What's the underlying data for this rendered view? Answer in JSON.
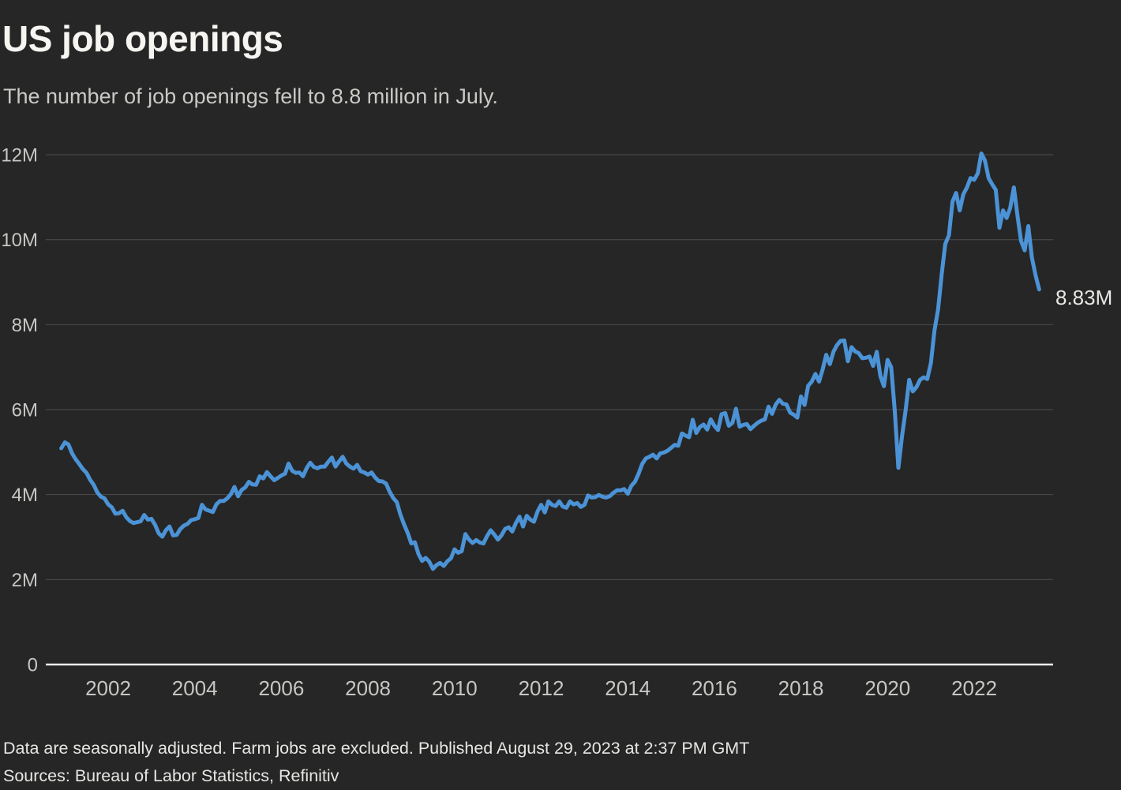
{
  "header": {
    "title": "US job openings",
    "subtitle": "The number of job openings fell to 8.8 million in July."
  },
  "footer": {
    "note": "Data are seasonally adjusted. Farm jobs are excluded. Published August 29, 2023 at 2:37 PM GMT",
    "sources": "Sources: Bureau of Labor Statistics, Refinitiv"
  },
  "colors": {
    "background": "#262626",
    "line": "#4b93d6",
    "grid": "#4e4e4e",
    "zero_axis": "#ededed",
    "title_text": "#f6f5f2",
    "muted_text": "#c6c6c3"
  },
  "chart_data": {
    "type": "line",
    "title": "US job openings",
    "subtitle": "The number of job openings fell to 8.8 million in July.",
    "unit": "millions of job openings",
    "frequency": "monthly",
    "start": "2000-12",
    "end": "2023-07",
    "ylim": [
      0,
      12.5
    ],
    "grid": "horizontal-only",
    "legend": "none",
    "end_label": "8.83M",
    "last_value": 8.83,
    "y_ticks": [
      {
        "label": "12M",
        "value": 12
      },
      {
        "label": "10M",
        "value": 10
      },
      {
        "label": "8M",
        "value": 8
      },
      {
        "label": "6M",
        "value": 6
      },
      {
        "label": "4M",
        "value": 4
      },
      {
        "label": "2M",
        "value": 2
      },
      {
        "label": "0",
        "value": 0
      }
    ],
    "x_ticks": [
      {
        "label": "2002",
        "value": 2002
      },
      {
        "label": "2004",
        "value": 2004
      },
      {
        "label": "2006",
        "value": 2006
      },
      {
        "label": "2008",
        "value": 2008
      },
      {
        "label": "2010",
        "value": 2010
      },
      {
        "label": "2012",
        "value": 2012
      },
      {
        "label": "2014",
        "value": 2014
      },
      {
        "label": "2016",
        "value": 2016
      },
      {
        "label": "2018",
        "value": 2018
      },
      {
        "label": "2020",
        "value": 2020
      },
      {
        "label": "2022",
        "value": 2022
      }
    ],
    "values": [
      5.09,
      5.23,
      5.18,
      4.97,
      4.83,
      4.72,
      4.6,
      4.51,
      4.35,
      4.23,
      4.05,
      3.95,
      3.91,
      3.77,
      3.7,
      3.55,
      3.56,
      3.62,
      3.47,
      3.38,
      3.33,
      3.35,
      3.37,
      3.52,
      3.41,
      3.43,
      3.29,
      3.09,
      3.01,
      3.16,
      3.25,
      3.04,
      3.05,
      3.19,
      3.27,
      3.31,
      3.4,
      3.42,
      3.45,
      3.76,
      3.65,
      3.62,
      3.59,
      3.77,
      3.85,
      3.85,
      3.91,
      4.01,
      4.18,
      3.96,
      4.11,
      4.17,
      4.3,
      4.24,
      4.23,
      4.43,
      4.38,
      4.53,
      4.43,
      4.34,
      4.39,
      4.45,
      4.49,
      4.73,
      4.56,
      4.51,
      4.52,
      4.43,
      4.62,
      4.75,
      4.65,
      4.62,
      4.66,
      4.66,
      4.77,
      4.87,
      4.66,
      4.78,
      4.89,
      4.73,
      4.66,
      4.61,
      4.7,
      4.55,
      4.52,
      4.47,
      4.52,
      4.4,
      4.32,
      4.31,
      4.26,
      4.07,
      3.92,
      3.82,
      3.53,
      3.3,
      3.1,
      2.85,
      2.88,
      2.6,
      2.44,
      2.51,
      2.42,
      2.25,
      2.34,
      2.39,
      2.32,
      2.43,
      2.5,
      2.71,
      2.63,
      2.67,
      3.07,
      2.94,
      2.86,
      2.93,
      2.87,
      2.85,
      3.02,
      3.16,
      3.06,
      2.94,
      3.04,
      3.19,
      3.23,
      3.13,
      3.33,
      3.48,
      3.25,
      3.5,
      3.41,
      3.36,
      3.6,
      3.76,
      3.58,
      3.84,
      3.76,
      3.73,
      3.84,
      3.72,
      3.69,
      3.84,
      3.77,
      3.8,
      3.71,
      3.76,
      3.98,
      3.93,
      3.94,
      3.99,
      3.95,
      3.93,
      3.96,
      4.04,
      4.1,
      4.1,
      4.13,
      4.02,
      4.21,
      4.3,
      4.49,
      4.72,
      4.85,
      4.89,
      4.94,
      4.85,
      4.97,
      4.99,
      5.03,
      5.1,
      5.17,
      5.15,
      5.44,
      5.39,
      5.35,
      5.76,
      5.45,
      5.59,
      5.65,
      5.53,
      5.77,
      5.62,
      5.52,
      5.89,
      5.92,
      5.62,
      5.69,
      6.02,
      5.6,
      5.64,
      5.66,
      5.54,
      5.62,
      5.69,
      5.74,
      5.77,
      6.07,
      5.9,
      6.12,
      6.23,
      6.14,
      6.12,
      5.93,
      5.88,
      5.81,
      6.31,
      6.11,
      6.56,
      6.66,
      6.84,
      6.66,
      6.94,
      7.29,
      7.07,
      7.36,
      7.52,
      7.62,
      7.63,
      7.14,
      7.47,
      7.37,
      7.33,
      7.21,
      7.22,
      7.25,
      7.03,
      7.36,
      6.79,
      6.55,
      7.17,
      7.0,
      5.98,
      4.63,
      5.37,
      5.99,
      6.7,
      6.43,
      6.53,
      6.7,
      6.76,
      6.72,
      7.1,
      7.86,
      8.36,
      9.19,
      9.9,
      10.1,
      10.9,
      11.1,
      10.69,
      11.07,
      11.23,
      11.45,
      11.41,
      11.56,
      12.03,
      11.86,
      11.45,
      11.3,
      11.17,
      10.28,
      10.69,
      10.51,
      10.75,
      11.23,
      10.56,
      9.97,
      9.75,
      10.32,
      9.58,
      9.17,
      8.83
    ]
  }
}
